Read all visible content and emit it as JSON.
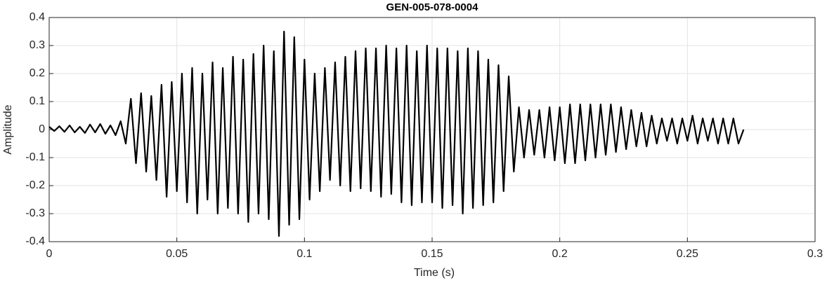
{
  "chart_data": {
    "type": "line",
    "title": "GEN-005-078-0004",
    "xlabel": "Time (s)",
    "ylabel": "Amplitude",
    "color": "#000000",
    "grid": true,
    "xlim": [
      0,
      0.3
    ],
    "xticks": [
      0,
      0.05,
      0.1,
      0.15,
      0.2,
      0.25,
      0.3
    ],
    "ylim": [
      -0.4,
      0.4
    ],
    "yticks": [
      -0.4,
      -0.3,
      -0.2,
      -0.1,
      0,
      0.1,
      0.2,
      0.3,
      0.4
    ],
    "x": [
      0,
      0.002,
      0.004,
      0.006,
      0.008,
      0.01,
      0.012,
      0.014,
      0.016,
      0.018,
      0.02,
      0.022,
      0.024,
      0.026,
      0.028,
      0.03,
      0.032,
      0.034,
      0.036,
      0.038,
      0.04,
      0.042,
      0.044,
      0.046,
      0.048,
      0.05,
      0.052,
      0.054,
      0.056,
      0.058,
      0.06,
      0.062,
      0.064,
      0.066,
      0.068,
      0.07,
      0.072,
      0.074,
      0.076,
      0.078,
      0.08,
      0.082,
      0.084,
      0.086,
      0.088,
      0.09,
      0.092,
      0.094,
      0.096,
      0.098,
      0.1,
      0.102,
      0.104,
      0.106,
      0.108,
      0.11,
      0.112,
      0.114,
      0.116,
      0.118,
      0.12,
      0.122,
      0.124,
      0.126,
      0.128,
      0.13,
      0.132,
      0.134,
      0.136,
      0.138,
      0.14,
      0.142,
      0.144,
      0.146,
      0.148,
      0.15,
      0.152,
      0.154,
      0.156,
      0.158,
      0.16,
      0.162,
      0.164,
      0.166,
      0.168,
      0.17,
      0.172,
      0.174,
      0.176,
      0.178,
      0.18,
      0.182,
      0.184,
      0.186,
      0.188,
      0.19,
      0.192,
      0.194,
      0.196,
      0.198,
      0.2,
      0.202,
      0.204,
      0.206,
      0.208,
      0.21,
      0.212,
      0.214,
      0.216,
      0.218,
      0.22,
      0.222,
      0.224,
      0.226,
      0.228,
      0.23,
      0.232,
      0.234,
      0.236,
      0.238,
      0.24,
      0.242,
      0.244,
      0.246,
      0.248,
      0.25,
      0.252,
      0.254,
      0.256,
      0.258,
      0.26,
      0.262,
      0.264,
      0.266,
      0.268,
      0.27,
      0.272
    ],
    "values": [
      0.01,
      -0.005,
      0.012,
      -0.008,
      0.015,
      -0.01,
      0.01,
      -0.012,
      0.018,
      -0.01,
      0.02,
      -0.015,
      0.015,
      -0.02,
      0.03,
      -0.05,
      0.11,
      -0.12,
      0.13,
      -0.15,
      0.12,
      -0.18,
      0.16,
      -0.24,
      0.17,
      -0.22,
      0.2,
      -0.26,
      0.22,
      -0.3,
      0.2,
      -0.25,
      0.24,
      -0.3,
      0.22,
      -0.28,
      0.26,
      -0.3,
      0.25,
      -0.33,
      0.27,
      -0.3,
      0.3,
      -0.32,
      0.28,
      -0.38,
      0.35,
      -0.34,
      0.33,
      -0.32,
      0.25,
      -0.25,
      0.2,
      -0.22,
      0.22,
      -0.18,
      0.24,
      -0.2,
      0.26,
      -0.22,
      0.28,
      -0.21,
      0.29,
      -0.22,
      0.29,
      -0.24,
      0.3,
      -0.23,
      0.29,
      -0.26,
      0.3,
      -0.27,
      0.28,
      -0.26,
      0.3,
      -0.26,
      0.29,
      -0.28,
      0.29,
      -0.27,
      0.28,
      -0.3,
      0.29,
      -0.28,
      0.28,
      -0.27,
      0.25,
      -0.26,
      0.23,
      -0.22,
      0.19,
      -0.15,
      0.08,
      -0.1,
      0.07,
      -0.09,
      0.07,
      -0.1,
      0.08,
      -0.11,
      0.08,
      -0.12,
      0.09,
      -0.12,
      0.09,
      -0.11,
      0.09,
      -0.1,
      0.09,
      -0.09,
      0.09,
      -0.08,
      0.08,
      -0.07,
      0.07,
      -0.06,
      0.06,
      -0.06,
      0.05,
      -0.05,
      0.04,
      -0.04,
      0.04,
      -0.05,
      0.04,
      -0.04,
      0.05,
      -0.05,
      0.04,
      -0.04,
      0.04,
      -0.05,
      0.04,
      -0.05,
      0.04,
      -0.05,
      0
    ]
  }
}
